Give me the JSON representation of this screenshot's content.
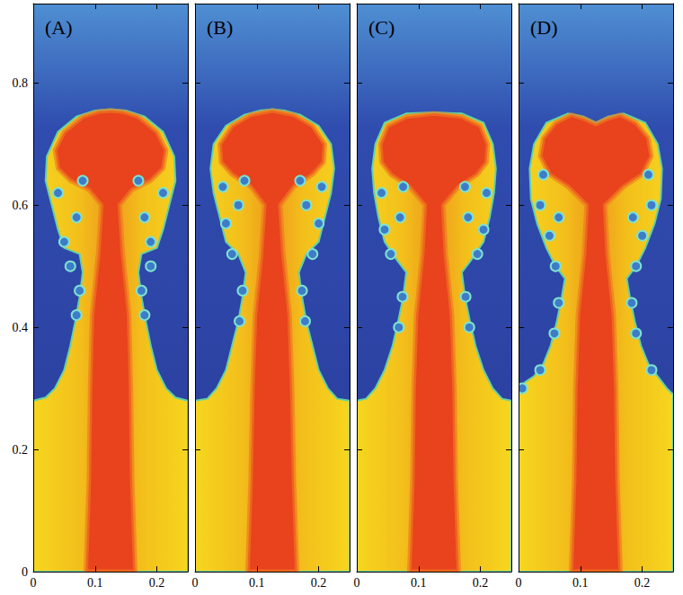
{
  "chart_data": [
    {
      "type": "contour",
      "title": "(A)",
      "xlim": [
        0,
        0.25
      ],
      "ylim": [
        0,
        0.93
      ],
      "xticks": [
        0,
        0.1,
        0.2
      ],
      "yticks": [
        0,
        0.2,
        0.4,
        0.6,
        0.8
      ],
      "envelope": [
        [
          0,
          0
        ],
        [
          0,
          0.28
        ],
        [
          0.02,
          0.285
        ],
        [
          0.035,
          0.3
        ],
        [
          0.05,
          0.33
        ],
        [
          0.06,
          0.37
        ],
        [
          0.068,
          0.41
        ],
        [
          0.075,
          0.45
        ],
        [
          0.08,
          0.49
        ],
        [
          0.075,
          0.52
        ],
        [
          0.05,
          0.53
        ],
        [
          0.04,
          0.56
        ],
        [
          0.03,
          0.6
        ],
        [
          0.02,
          0.64
        ],
        [
          0.022,
          0.68
        ],
        [
          0.04,
          0.72
        ],
        [
          0.07,
          0.745
        ],
        [
          0.1,
          0.755
        ],
        [
          0.125,
          0.757
        ],
        [
          0.15,
          0.755
        ],
        [
          0.18,
          0.745
        ],
        [
          0.21,
          0.72
        ],
        [
          0.228,
          0.68
        ],
        [
          0.23,
          0.64
        ],
        [
          0.22,
          0.6
        ],
        [
          0.21,
          0.56
        ],
        [
          0.2,
          0.53
        ],
        [
          0.175,
          0.52
        ],
        [
          0.17,
          0.49
        ],
        [
          0.175,
          0.45
        ],
        [
          0.182,
          0.41
        ],
        [
          0.19,
          0.37
        ],
        [
          0.2,
          0.33
        ],
        [
          0.215,
          0.3
        ],
        [
          0.23,
          0.285
        ],
        [
          0.25,
          0.28
        ],
        [
          0.25,
          0
        ]
      ],
      "core": [
        [
          0.085,
          0
        ],
        [
          0.09,
          0.15
        ],
        [
          0.092,
          0.3
        ],
        [
          0.095,
          0.42
        ],
        [
          0.105,
          0.52
        ],
        [
          0.11,
          0.6
        ],
        [
          0.09,
          0.625
        ],
        [
          0.06,
          0.64
        ],
        [
          0.04,
          0.66
        ],
        [
          0.035,
          0.69
        ],
        [
          0.05,
          0.72
        ],
        [
          0.08,
          0.745
        ],
        [
          0.105,
          0.753
        ],
        [
          0.125,
          0.755
        ],
        [
          0.145,
          0.753
        ],
        [
          0.17,
          0.745
        ],
        [
          0.2,
          0.72
        ],
        [
          0.215,
          0.69
        ],
        [
          0.21,
          0.66
        ],
        [
          0.19,
          0.64
        ],
        [
          0.16,
          0.625
        ],
        [
          0.14,
          0.6
        ],
        [
          0.145,
          0.52
        ],
        [
          0.155,
          0.42
        ],
        [
          0.158,
          0.3
        ],
        [
          0.16,
          0.15
        ],
        [
          0.165,
          0
        ]
      ],
      "vortices": [
        [
          0.07,
          0.42
        ],
        [
          0.075,
          0.46
        ],
        [
          0.18,
          0.42
        ],
        [
          0.175,
          0.46
        ],
        [
          0.05,
          0.54
        ],
        [
          0.07,
          0.58
        ],
        [
          0.04,
          0.62
        ],
        [
          0.08,
          0.64
        ],
        [
          0.06,
          0.5
        ],
        [
          0.19,
          0.54
        ],
        [
          0.18,
          0.58
        ],
        [
          0.21,
          0.62
        ],
        [
          0.17,
          0.64
        ],
        [
          0.19,
          0.5
        ]
      ]
    },
    {
      "type": "contour",
      "title": "(B)",
      "xlim": [
        0,
        0.25
      ],
      "ylim": [
        0,
        0.93
      ],
      "xticks": [
        0,
        0.1,
        0.2
      ],
      "yticks": [
        0,
        0.2,
        0.4,
        0.6,
        0.8
      ],
      "tick_labels": "x",
      "envelope": [
        [
          0,
          0
        ],
        [
          0,
          0.28
        ],
        [
          0.02,
          0.283
        ],
        [
          0.035,
          0.3
        ],
        [
          0.05,
          0.33
        ],
        [
          0.06,
          0.37
        ],
        [
          0.07,
          0.41
        ],
        [
          0.077,
          0.45
        ],
        [
          0.082,
          0.49
        ],
        [
          0.07,
          0.52
        ],
        [
          0.05,
          0.54
        ],
        [
          0.04,
          0.58
        ],
        [
          0.03,
          0.62
        ],
        [
          0.025,
          0.66
        ],
        [
          0.03,
          0.7
        ],
        [
          0.05,
          0.73
        ],
        [
          0.08,
          0.748
        ],
        [
          0.105,
          0.755
        ],
        [
          0.125,
          0.757
        ],
        [
          0.145,
          0.755
        ],
        [
          0.17,
          0.748
        ],
        [
          0.2,
          0.73
        ],
        [
          0.22,
          0.7
        ],
        [
          0.225,
          0.66
        ],
        [
          0.22,
          0.62
        ],
        [
          0.21,
          0.58
        ],
        [
          0.2,
          0.54
        ],
        [
          0.18,
          0.52
        ],
        [
          0.168,
          0.49
        ],
        [
          0.173,
          0.45
        ],
        [
          0.18,
          0.41
        ],
        [
          0.19,
          0.37
        ],
        [
          0.2,
          0.33
        ],
        [
          0.215,
          0.3
        ],
        [
          0.23,
          0.283
        ],
        [
          0.25,
          0.28
        ],
        [
          0.25,
          0
        ]
      ],
      "core": [
        [
          0.085,
          0
        ],
        [
          0.09,
          0.15
        ],
        [
          0.093,
          0.3
        ],
        [
          0.097,
          0.42
        ],
        [
          0.107,
          0.52
        ],
        [
          0.112,
          0.6
        ],
        [
          0.09,
          0.63
        ],
        [
          0.06,
          0.65
        ],
        [
          0.042,
          0.67
        ],
        [
          0.04,
          0.7
        ],
        [
          0.06,
          0.73
        ],
        [
          0.09,
          0.748
        ],
        [
          0.125,
          0.755
        ],
        [
          0.16,
          0.748
        ],
        [
          0.19,
          0.73
        ],
        [
          0.21,
          0.7
        ],
        [
          0.208,
          0.67
        ],
        [
          0.19,
          0.65
        ],
        [
          0.16,
          0.63
        ],
        [
          0.138,
          0.6
        ],
        [
          0.143,
          0.52
        ],
        [
          0.153,
          0.42
        ],
        [
          0.157,
          0.3
        ],
        [
          0.16,
          0.15
        ],
        [
          0.165,
          0
        ]
      ],
      "vortices": [
        [
          0.072,
          0.41
        ],
        [
          0.077,
          0.46
        ],
        [
          0.178,
          0.41
        ],
        [
          0.173,
          0.46
        ],
        [
          0.06,
          0.52
        ],
        [
          0.05,
          0.57
        ],
        [
          0.07,
          0.6
        ],
        [
          0.045,
          0.63
        ],
        [
          0.08,
          0.64
        ],
        [
          0.19,
          0.52
        ],
        [
          0.2,
          0.57
        ],
        [
          0.18,
          0.6
        ],
        [
          0.205,
          0.63
        ],
        [
          0.17,
          0.64
        ]
      ]
    },
    {
      "type": "contour",
      "title": "(C)",
      "xlim": [
        0,
        0.25
      ],
      "ylim": [
        0,
        0.93
      ],
      "xticks": [
        0,
        0.1,
        0.2
      ],
      "yticks": [
        0,
        0.2,
        0.4,
        0.6,
        0.8
      ],
      "tick_labels": "x",
      "envelope": [
        [
          0,
          0
        ],
        [
          0,
          0.28
        ],
        [
          0.015,
          0.283
        ],
        [
          0.03,
          0.3
        ],
        [
          0.045,
          0.33
        ],
        [
          0.058,
          0.37
        ],
        [
          0.067,
          0.41
        ],
        [
          0.075,
          0.45
        ],
        [
          0.08,
          0.49
        ],
        [
          0.065,
          0.51
        ],
        [
          0.045,
          0.54
        ],
        [
          0.035,
          0.58
        ],
        [
          0.028,
          0.62
        ],
        [
          0.025,
          0.66
        ],
        [
          0.03,
          0.7
        ],
        [
          0.045,
          0.735
        ],
        [
          0.08,
          0.75
        ],
        [
          0.125,
          0.752
        ],
        [
          0.17,
          0.75
        ],
        [
          0.205,
          0.735
        ],
        [
          0.22,
          0.7
        ],
        [
          0.225,
          0.66
        ],
        [
          0.222,
          0.62
        ],
        [
          0.215,
          0.58
        ],
        [
          0.205,
          0.54
        ],
        [
          0.185,
          0.51
        ],
        [
          0.17,
          0.49
        ],
        [
          0.175,
          0.45
        ],
        [
          0.183,
          0.41
        ],
        [
          0.192,
          0.37
        ],
        [
          0.205,
          0.33
        ],
        [
          0.22,
          0.3
        ],
        [
          0.235,
          0.283
        ],
        [
          0.25,
          0.28
        ],
        [
          0.25,
          0
        ]
      ],
      "core": [
        [
          0.085,
          0
        ],
        [
          0.09,
          0.15
        ],
        [
          0.092,
          0.3
        ],
        [
          0.096,
          0.42
        ],
        [
          0.106,
          0.52
        ],
        [
          0.11,
          0.6
        ],
        [
          0.085,
          0.63
        ],
        [
          0.055,
          0.65
        ],
        [
          0.04,
          0.67
        ],
        [
          0.038,
          0.7
        ],
        [
          0.05,
          0.73
        ],
        [
          0.08,
          0.745
        ],
        [
          0.125,
          0.75
        ],
        [
          0.17,
          0.745
        ],
        [
          0.2,
          0.73
        ],
        [
          0.212,
          0.7
        ],
        [
          0.21,
          0.67
        ],
        [
          0.195,
          0.65
        ],
        [
          0.165,
          0.63
        ],
        [
          0.14,
          0.6
        ],
        [
          0.144,
          0.52
        ],
        [
          0.154,
          0.42
        ],
        [
          0.158,
          0.3
        ],
        [
          0.16,
          0.15
        ],
        [
          0.165,
          0
        ]
      ],
      "vortices": [
        [
          0.068,
          0.4
        ],
        [
          0.074,
          0.45
        ],
        [
          0.182,
          0.4
        ],
        [
          0.176,
          0.45
        ],
        [
          0.055,
          0.52
        ],
        [
          0.045,
          0.56
        ],
        [
          0.07,
          0.58
        ],
        [
          0.04,
          0.62
        ],
        [
          0.075,
          0.63
        ],
        [
          0.195,
          0.52
        ],
        [
          0.205,
          0.56
        ],
        [
          0.18,
          0.58
        ],
        [
          0.21,
          0.62
        ],
        [
          0.175,
          0.63
        ]
      ]
    },
    {
      "type": "contour",
      "title": "(D)",
      "xlim": [
        0,
        0.25
      ],
      "ylim": [
        0,
        0.93
      ],
      "xticks": [
        0,
        0.1,
        0.2
      ],
      "yticks": [
        0,
        0.2,
        0.4,
        0.6,
        0.8
      ],
      "tick_labels": "x",
      "envelope": [
        [
          0,
          0
        ],
        [
          0,
          0.29
        ],
        [
          0.01,
          0.31
        ],
        [
          0.025,
          0.32
        ],
        [
          0.04,
          0.34
        ],
        [
          0.052,
          0.37
        ],
        [
          0.062,
          0.41
        ],
        [
          0.07,
          0.45
        ],
        [
          0.075,
          0.48
        ],
        [
          0.06,
          0.5
        ],
        [
          0.045,
          0.53
        ],
        [
          0.03,
          0.57
        ],
        [
          0.02,
          0.61
        ],
        [
          0.018,
          0.66
        ],
        [
          0.025,
          0.7
        ],
        [
          0.045,
          0.735
        ],
        [
          0.08,
          0.75
        ],
        [
          0.105,
          0.745
        ],
        [
          0.125,
          0.735
        ],
        [
          0.145,
          0.745
        ],
        [
          0.17,
          0.75
        ],
        [
          0.205,
          0.735
        ],
        [
          0.225,
          0.7
        ],
        [
          0.232,
          0.66
        ],
        [
          0.23,
          0.61
        ],
        [
          0.22,
          0.57
        ],
        [
          0.205,
          0.53
        ],
        [
          0.19,
          0.5
        ],
        [
          0.175,
          0.48
        ],
        [
          0.18,
          0.45
        ],
        [
          0.188,
          0.41
        ],
        [
          0.198,
          0.37
        ],
        [
          0.21,
          0.34
        ],
        [
          0.225,
          0.32
        ],
        [
          0.24,
          0.3
        ],
        [
          0.25,
          0.29
        ],
        [
          0.25,
          0
        ]
      ],
      "core": [
        [
          0.085,
          0
        ],
        [
          0.09,
          0.15
        ],
        [
          0.092,
          0.3
        ],
        [
          0.096,
          0.42
        ],
        [
          0.106,
          0.52
        ],
        [
          0.11,
          0.6
        ],
        [
          0.08,
          0.63
        ],
        [
          0.05,
          0.65
        ],
        [
          0.035,
          0.68
        ],
        [
          0.04,
          0.71
        ],
        [
          0.06,
          0.735
        ],
        [
          0.085,
          0.748
        ],
        [
          0.105,
          0.742
        ],
        [
          0.125,
          0.733
        ],
        [
          0.145,
          0.742
        ],
        [
          0.165,
          0.748
        ],
        [
          0.19,
          0.735
        ],
        [
          0.21,
          0.71
        ],
        [
          0.215,
          0.68
        ],
        [
          0.2,
          0.65
        ],
        [
          0.17,
          0.63
        ],
        [
          0.14,
          0.6
        ],
        [
          0.144,
          0.52
        ],
        [
          0.154,
          0.42
        ],
        [
          0.158,
          0.3
        ],
        [
          0.16,
          0.15
        ],
        [
          0.165,
          0
        ]
      ],
      "vortices": [
        [
          0.006,
          0.3
        ],
        [
          0.035,
          0.33
        ],
        [
          0.058,
          0.39
        ],
        [
          0.065,
          0.44
        ],
        [
          0.19,
          0.39
        ],
        [
          0.183,
          0.44
        ],
        [
          0.215,
          0.33
        ],
        [
          0.06,
          0.5
        ],
        [
          0.05,
          0.55
        ],
        [
          0.035,
          0.6
        ],
        [
          0.065,
          0.58
        ],
        [
          0.04,
          0.65
        ],
        [
          0.19,
          0.5
        ],
        [
          0.2,
          0.55
        ],
        [
          0.215,
          0.6
        ],
        [
          0.185,
          0.58
        ],
        [
          0.21,
          0.65
        ]
      ]
    }
  ]
}
